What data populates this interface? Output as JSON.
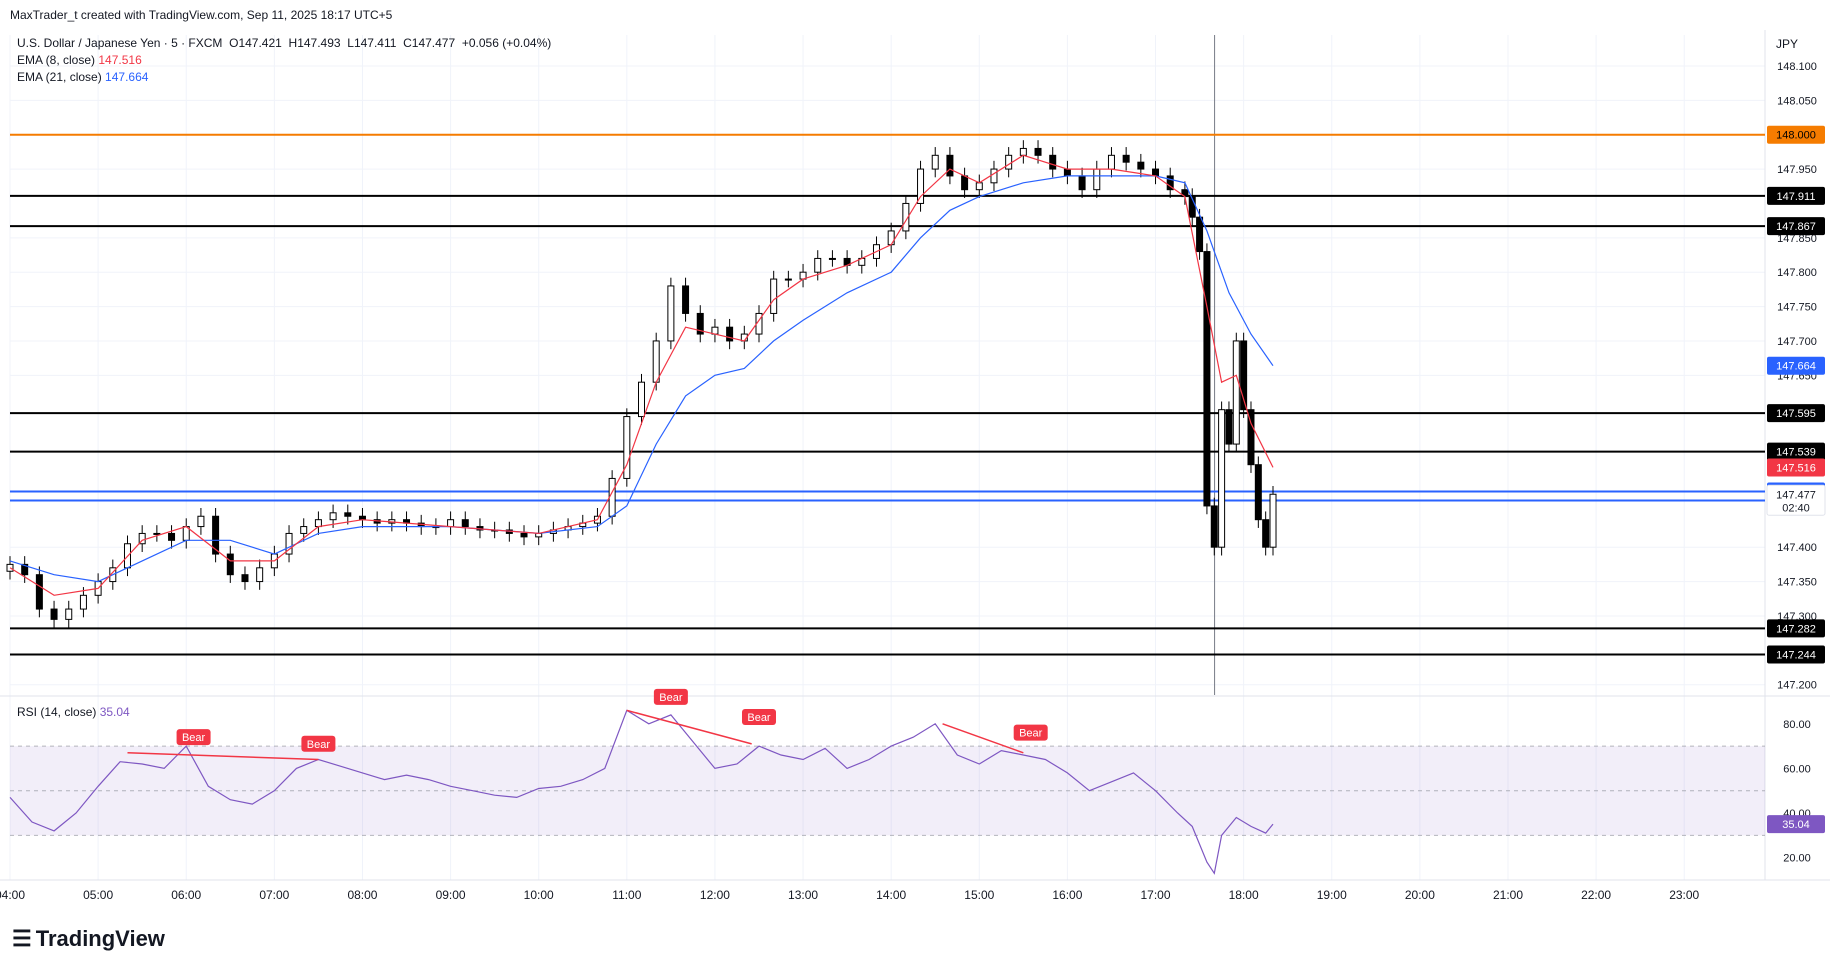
{
  "creator": "MaxTrader_t created with TradingView.com, Sep 11, 2025 18:17 UTC+5",
  "symbol": {
    "title": "U.S. Dollar / Japanese Yen · 5 · FXCM",
    "open_label": "O",
    "open": "147.421",
    "high_label": "H",
    "high": "147.493",
    "low_label": "L",
    "low": "147.411",
    "close_label": "C",
    "close": "147.477",
    "change": "+0.056 (+0.04%)"
  },
  "indicators": {
    "ema8": {
      "label": "EMA (8, close)",
      "value": "147.516",
      "color": "#f23645"
    },
    "ema21": {
      "label": "EMA (21, close)",
      "value": "147.664",
      "color": "#2962ff"
    },
    "rsi": {
      "label": "RSI (14, close)",
      "value": "35.04",
      "color": "#7e57c2"
    }
  },
  "currency": "JPY",
  "brand": "TradingView",
  "countdown": "02:40",
  "colors": {
    "up": "#ffffff",
    "down": "#000000",
    "resistance": "#f57c00",
    "level": "#000000",
    "blue_level": "#2962ff",
    "bear": "#f23645"
  },
  "chart_data": {
    "type": "candlestick",
    "price_ylim": [
      147.185,
      148.145
    ],
    "price_ticks": [
      "148.100",
      "148.050",
      "147.950",
      "147.850",
      "147.800",
      "147.750",
      "147.700",
      "147.650",
      "147.400",
      "147.350",
      "147.300",
      "147.200"
    ],
    "x_ticks": [
      "04:00",
      "05:00",
      "06:00",
      "07:00",
      "08:00",
      "09:00",
      "10:00",
      "11:00",
      "12:00",
      "13:00",
      "14:00",
      "15:00",
      "16:00",
      "17:00",
      "18:00",
      "19:00",
      "20:00",
      "21:00",
      "22:00",
      "23:00"
    ],
    "close_path": [
      [
        "04:00",
        147.375
      ],
      [
        "04:10",
        147.36
      ],
      [
        "04:20",
        147.31
      ],
      [
        "04:30",
        147.295
      ],
      [
        "04:40",
        147.31
      ],
      [
        "04:50",
        147.33
      ],
      [
        "05:00",
        147.35
      ],
      [
        "05:10",
        147.37
      ],
      [
        "05:20",
        147.405
      ],
      [
        "05:30",
        147.42
      ],
      [
        "05:40",
        147.42
      ],
      [
        "05:50",
        147.41
      ],
      [
        "06:00",
        147.43
      ],
      [
        "06:10",
        147.445
      ],
      [
        "06:20",
        147.39
      ],
      [
        "06:30",
        147.36
      ],
      [
        "06:40",
        147.35
      ],
      [
        "06:50",
        147.37
      ],
      [
        "07:00",
        147.39
      ],
      [
        "07:10",
        147.42
      ],
      [
        "07:20",
        147.43
      ],
      [
        "07:30",
        147.44
      ],
      [
        "07:40",
        147.45
      ],
      [
        "07:50",
        147.445
      ],
      [
        "08:00",
        147.44
      ],
      [
        "08:10",
        147.435
      ],
      [
        "08:20",
        147.44
      ],
      [
        "08:30",
        147.435
      ],
      [
        "08:40",
        147.43
      ],
      [
        "08:50",
        147.43
      ],
      [
        "09:00",
        147.44
      ],
      [
        "09:10",
        147.43
      ],
      [
        "09:20",
        147.425
      ],
      [
        "09:30",
        147.425
      ],
      [
        "09:40",
        147.42
      ],
      [
        "09:50",
        147.415
      ],
      [
        "10:00",
        147.42
      ],
      [
        "10:10",
        147.425
      ],
      [
        "10:20",
        147.43
      ],
      [
        "10:30",
        147.435
      ],
      [
        "10:40",
        147.445
      ],
      [
        "10:50",
        147.5
      ],
      [
        "11:00",
        147.59
      ],
      [
        "11:10",
        147.64
      ],
      [
        "11:20",
        147.7
      ],
      [
        "11:30",
        147.78
      ],
      [
        "11:40",
        147.74
      ],
      [
        "11:50",
        147.71
      ],
      [
        "12:00",
        147.72
      ],
      [
        "12:10",
        147.7
      ],
      [
        "12:20",
        147.71
      ],
      [
        "12:30",
        147.74
      ],
      [
        "12:40",
        147.79
      ],
      [
        "12:50",
        147.79
      ],
      [
        "13:00",
        147.8
      ],
      [
        "13:10",
        147.82
      ],
      [
        "13:20",
        147.82
      ],
      [
        "13:30",
        147.81
      ],
      [
        "13:40",
        147.82
      ],
      [
        "13:50",
        147.84
      ],
      [
        "14:00",
        147.86
      ],
      [
        "14:10",
        147.9
      ],
      [
        "14:20",
        147.95
      ],
      [
        "14:30",
        147.97
      ],
      [
        "14:40",
        147.94
      ],
      [
        "14:50",
        147.92
      ],
      [
        "15:00",
        147.93
      ],
      [
        "15:10",
        147.95
      ],
      [
        "15:20",
        147.97
      ],
      [
        "15:30",
        147.98
      ],
      [
        "15:40",
        147.97
      ],
      [
        "15:50",
        147.95
      ],
      [
        "16:00",
        147.94
      ],
      [
        "16:10",
        147.92
      ],
      [
        "16:20",
        147.95
      ],
      [
        "16:30",
        147.97
      ],
      [
        "16:40",
        147.96
      ],
      [
        "16:50",
        147.95
      ],
      [
        "17:00",
        147.94
      ],
      [
        "17:10",
        147.92
      ],
      [
        "17:20",
        147.91
      ],
      [
        "17:25",
        147.88
      ],
      [
        "17:30",
        147.83
      ],
      [
        "17:35",
        147.46
      ],
      [
        "17:40",
        147.4
      ],
      [
        "17:45",
        147.6
      ],
      [
        "17:50",
        147.55
      ],
      [
        "17:55",
        147.7
      ],
      [
        "18:00",
        147.6
      ],
      [
        "18:05",
        147.52
      ],
      [
        "18:10",
        147.44
      ],
      [
        "18:15",
        147.4
      ],
      [
        "18:20",
        147.477
      ]
    ],
    "ema8_path": [
      [
        "04:00",
        147.37
      ],
      [
        "04:30",
        147.33
      ],
      [
        "05:00",
        147.34
      ],
      [
        "05:30",
        147.41
      ],
      [
        "06:00",
        147.43
      ],
      [
        "06:30",
        147.38
      ],
      [
        "07:00",
        147.38
      ],
      [
        "07:30",
        147.43
      ],
      [
        "08:00",
        147.44
      ],
      [
        "09:00",
        147.43
      ],
      [
        "10:00",
        147.42
      ],
      [
        "10:40",
        147.44
      ],
      [
        "11:00",
        147.52
      ],
      [
        "11:20",
        147.64
      ],
      [
        "11:40",
        147.72
      ],
      [
        "12:00",
        147.71
      ],
      [
        "12:20",
        147.7
      ],
      [
        "12:40",
        147.76
      ],
      [
        "13:00",
        147.79
      ],
      [
        "13:30",
        147.81
      ],
      [
        "14:00",
        147.84
      ],
      [
        "14:20",
        147.91
      ],
      [
        "14:40",
        147.95
      ],
      [
        "15:00",
        147.93
      ],
      [
        "15:30",
        147.97
      ],
      [
        "16:00",
        147.95
      ],
      [
        "16:30",
        147.95
      ],
      [
        "17:00",
        147.94
      ],
      [
        "17:20",
        147.91
      ],
      [
        "17:35",
        147.75
      ],
      [
        "17:45",
        147.64
      ],
      [
        "17:55",
        147.65
      ],
      [
        "18:05",
        147.58
      ],
      [
        "18:20",
        147.516
      ]
    ],
    "ema21_path": [
      [
        "04:00",
        147.38
      ],
      [
        "04:30",
        147.36
      ],
      [
        "05:00",
        147.35
      ],
      [
        "05:30",
        147.38
      ],
      [
        "06:00",
        147.41
      ],
      [
        "06:30",
        147.41
      ],
      [
        "07:00",
        147.39
      ],
      [
        "07:30",
        147.42
      ],
      [
        "08:00",
        147.43
      ],
      [
        "09:00",
        147.43
      ],
      [
        "10:00",
        147.42
      ],
      [
        "10:40",
        147.43
      ],
      [
        "11:00",
        147.46
      ],
      [
        "11:20",
        147.55
      ],
      [
        "11:40",
        147.62
      ],
      [
        "12:00",
        147.65
      ],
      [
        "12:20",
        147.66
      ],
      [
        "12:40",
        147.7
      ],
      [
        "13:00",
        147.73
      ],
      [
        "13:30",
        147.77
      ],
      [
        "14:00",
        147.8
      ],
      [
        "14:20",
        147.85
      ],
      [
        "14:40",
        147.89
      ],
      [
        "15:00",
        147.91
      ],
      [
        "15:30",
        147.93
      ],
      [
        "16:00",
        147.94
      ],
      [
        "16:30",
        147.94
      ],
      [
        "17:00",
        147.94
      ],
      [
        "17:20",
        147.93
      ],
      [
        "17:35",
        147.86
      ],
      [
        "17:50",
        147.77
      ],
      [
        "18:05",
        147.71
      ],
      [
        "18:20",
        147.664
      ]
    ],
    "levels": [
      {
        "value": 148.0,
        "label": "148.000",
        "kind": "resistance"
      },
      {
        "value": 147.911,
        "label": "147.911",
        "kind": "level"
      },
      {
        "value": 147.867,
        "label": "147.867",
        "kind": "level"
      },
      {
        "value": 147.595,
        "label": "147.595",
        "kind": "level"
      },
      {
        "value": 147.539,
        "label": "147.539",
        "kind": "level"
      },
      {
        "value": 147.481,
        "label": "147.481",
        "kind": "blue"
      },
      {
        "value": 147.468,
        "label": "147.468",
        "kind": "blue"
      },
      {
        "value": 147.282,
        "label": "147.282",
        "kind": "level"
      },
      {
        "value": 147.244,
        "label": "147.244",
        "kind": "level"
      }
    ],
    "price_badges": [
      {
        "value": 147.664,
        "label": "147.664",
        "kind": "ema21"
      },
      {
        "value": 147.516,
        "label": "147.516",
        "kind": "ema8"
      },
      {
        "value": 147.477,
        "label": "147.477",
        "kind": "last"
      }
    ],
    "rsi_ylim": [
      10,
      92
    ],
    "rsi_ticks": [
      "80.00",
      "60.00",
      "40.00",
      "20.00"
    ],
    "rsi_bands": [
      70,
      50,
      30
    ],
    "rsi_path": [
      [
        "04:00",
        47
      ],
      [
        "04:15",
        36
      ],
      [
        "04:30",
        32
      ],
      [
        "04:45",
        40
      ],
      [
        "05:00",
        52
      ],
      [
        "05:15",
        63
      ],
      [
        "05:30",
        62
      ],
      [
        "05:45",
        60
      ],
      [
        "06:00",
        70
      ],
      [
        "06:15",
        52
      ],
      [
        "06:30",
        46
      ],
      [
        "06:45",
        44
      ],
      [
        "07:00",
        50
      ],
      [
        "07:15",
        60
      ],
      [
        "07:30",
        64
      ],
      [
        "07:45",
        61
      ],
      [
        "08:00",
        58
      ],
      [
        "08:15",
        55
      ],
      [
        "08:30",
        57
      ],
      [
        "08:45",
        55
      ],
      [
        "09:00",
        52
      ],
      [
        "09:15",
        50
      ],
      [
        "09:30",
        48
      ],
      [
        "09:45",
        47
      ],
      [
        "10:00",
        51
      ],
      [
        "10:15",
        52
      ],
      [
        "10:30",
        55
      ],
      [
        "10:45",
        60
      ],
      [
        "11:00",
        86
      ],
      [
        "11:15",
        80
      ],
      [
        "11:30",
        84
      ],
      [
        "11:45",
        72
      ],
      [
        "12:00",
        60
      ],
      [
        "12:15",
        62
      ],
      [
        "12:30",
        70
      ],
      [
        "12:45",
        66
      ],
      [
        "13:00",
        64
      ],
      [
        "13:15",
        69
      ],
      [
        "13:30",
        60
      ],
      [
        "13:45",
        64
      ],
      [
        "14:00",
        70
      ],
      [
        "14:15",
        74
      ],
      [
        "14:30",
        80
      ],
      [
        "14:45",
        66
      ],
      [
        "15:00",
        62
      ],
      [
        "15:15",
        68
      ],
      [
        "15:30",
        66
      ],
      [
        "15:45",
        64
      ],
      [
        "16:00",
        58
      ],
      [
        "16:15",
        50
      ],
      [
        "16:30",
        54
      ],
      [
        "16:45",
        58
      ],
      [
        "17:00",
        50
      ],
      [
        "17:15",
        40
      ],
      [
        "17:25",
        34
      ],
      [
        "17:35",
        18
      ],
      [
        "17:40",
        13
      ],
      [
        "17:45",
        30
      ],
      [
        "17:55",
        38
      ],
      [
        "18:05",
        34
      ],
      [
        "18:15",
        31
      ],
      [
        "18:20",
        35.04
      ]
    ],
    "bear_labels": [
      {
        "x": "06:05",
        "value": 70,
        "text": "Bear"
      },
      {
        "x": "07:30",
        "value": 67,
        "text": "Bear"
      },
      {
        "x": "11:30",
        "value": 88,
        "text": "Bear"
      },
      {
        "x": "12:30",
        "value": 79,
        "text": "Bear"
      },
      {
        "x": "15:35",
        "value": 72,
        "text": "Bear"
      }
    ],
    "bear_divergences": [
      {
        "from": [
          "05:20",
          67
        ],
        "to": [
          "07:30",
          64
        ]
      },
      {
        "from": [
          "11:00",
          86
        ],
        "to": [
          "12:25",
          71
        ]
      },
      {
        "from": [
          "14:35",
          80
        ],
        "to": [
          "15:30",
          67
        ]
      }
    ],
    "time_marker": "17:30"
  }
}
